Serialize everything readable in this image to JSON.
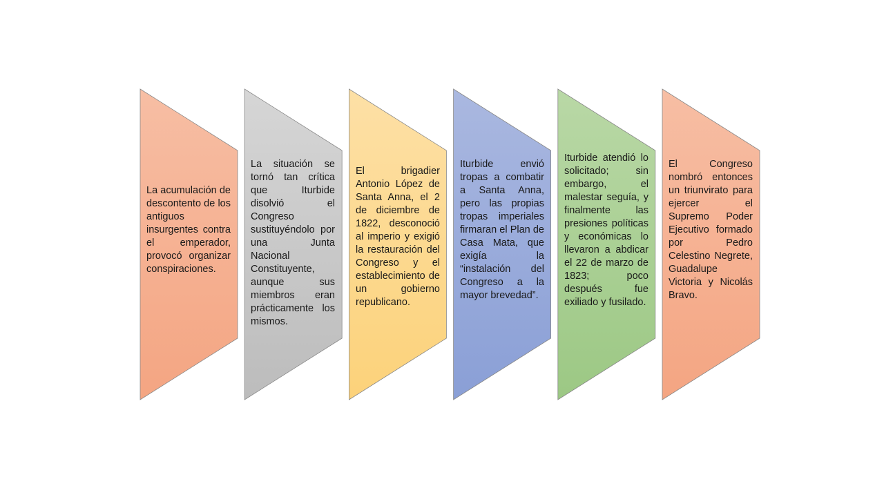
{
  "diagram": {
    "type": "process-flow",
    "colors": {
      "salmon": "#f4a582",
      "gray": "#bdbdbd",
      "yellow": "#fcd47e",
      "blue": "#8ea3d8",
      "green": "#a4cd8c",
      "outline": "#888888"
    },
    "steps": [
      {
        "text": "La acumulación de descontento de los antiguos insurgentes contra el emperador, provocó organizar conspiraciones.",
        "color_top": "#f7bea4",
        "color_bottom": "#f4a582"
      },
      {
        "text": "La situación se tornó tan crítica que Iturbide disolvió el Congreso sustituyéndolo por una Junta Nacional Constituyente, aunque sus miembros eran prácticamente los mismos.",
        "color_top": "#d6d6d6",
        "color_bottom": "#bcbcbc"
      },
      {
        "text": "El brigadier Antonio López de Santa Anna, el 2 de diciembre de 1822, desconoció al imperio y exigió la restauración del Congreso y el establecimiento de un gobierno republicano.",
        "color_top": "#fde0a6",
        "color_bottom": "#fcd27a"
      },
      {
        "text": "Iturbide envió tropas a combatir a Santa Anna, pero las propias tropas imperiales firmaran el Plan de Casa Mata, que exigía la “instalación del Congreso a la mayor brevedad”.",
        "color_top": "#aab8e0",
        "color_bottom": "#8a9fd6"
      },
      {
        "text": "Iturbide atendió lo solicitado; sin embargo, el malestar seguía, y finalmente las presiones políticas y económicas lo llevaron a abdicar el 22 de marzo de 1823; poco después fue exiliado y fusilado.",
        "color_top": "#b9d8a6",
        "color_bottom": "#9cc884"
      },
      {
        "text": "El Congreso nombró entonces un triunvirato para ejercer el Supremo Poder Ejecutivo formado por Pedro Celestino Negrete, Guadalupe Victoria y Nicolás Bravo.",
        "color_top": "#f7bea4",
        "color_bottom": "#f4a582"
      }
    ]
  }
}
